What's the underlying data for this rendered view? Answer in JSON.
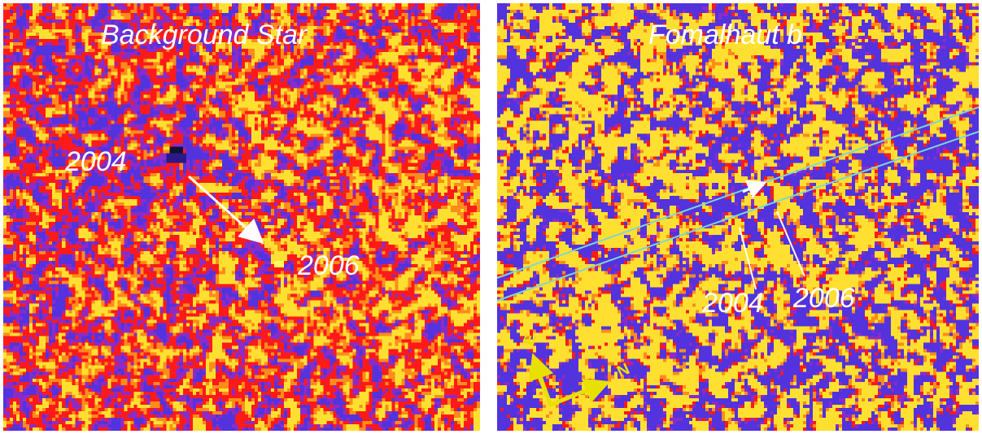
{
  "left_panel": {
    "title": "Background Star",
    "label_2004": "2004",
    "label_2006": "2006"
  },
  "right_panel": {
    "title": "Fomalhaut b",
    "label_2004": "2004",
    "label_2006": "2006",
    "compass": {
      "east": "E",
      "north": "N"
    }
  },
  "colors": {
    "background_red": "#ff1a1a",
    "noise_blue": "#5533e0",
    "noise_orange": "#ff8c1a",
    "noise_yellow": "#ffe030",
    "orbit_line": "#7fd6d0",
    "compass": "#e8e000",
    "arrow": "#ffffff"
  }
}
